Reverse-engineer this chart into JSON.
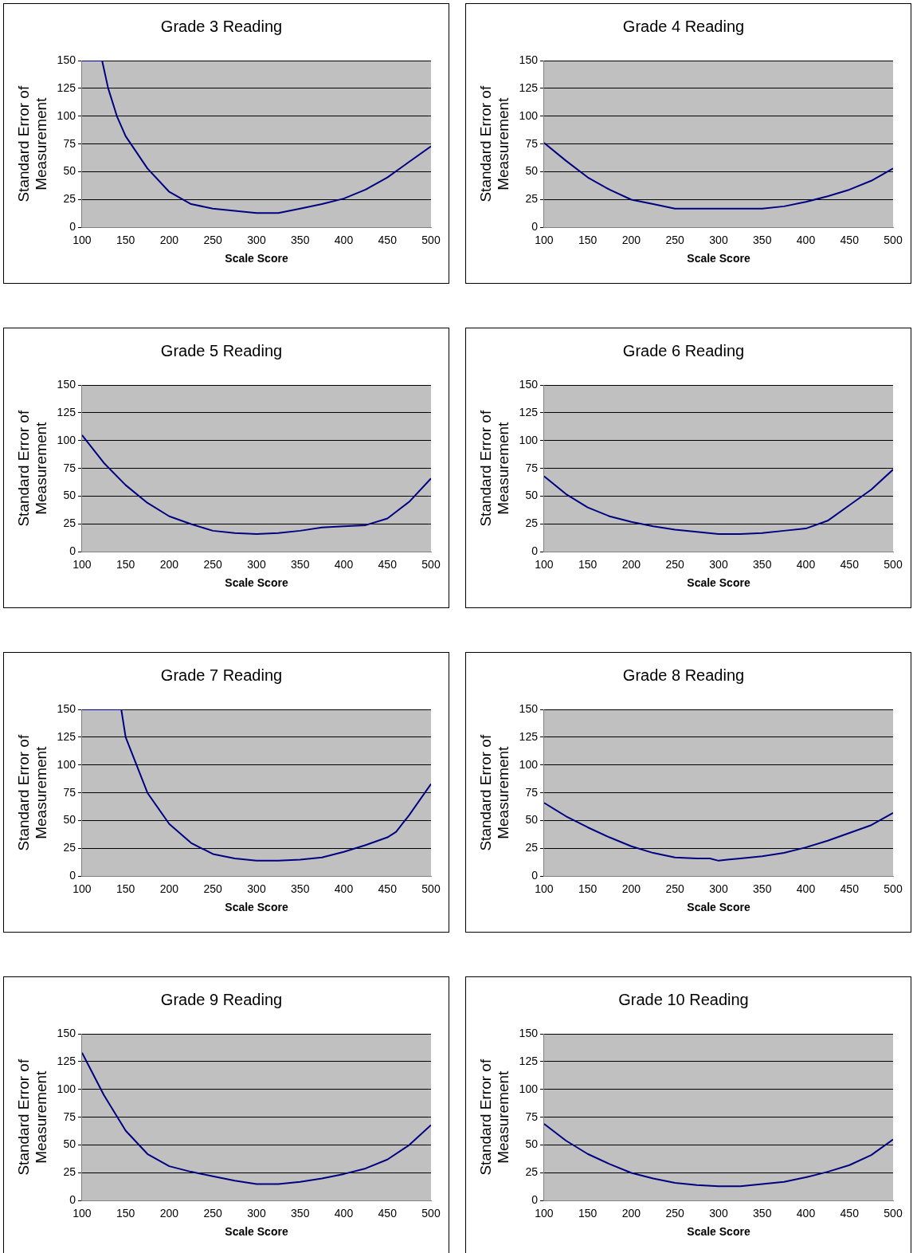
{
  "chart_data": [
    {
      "type": "line",
      "title": "Grade 3 Reading",
      "xlabel": "Scale Score",
      "ylabel": "Standard Error of Measurement",
      "xlim": [
        100,
        500
      ],
      "ylim": [
        0,
        150
      ],
      "xticks": [
        100,
        150,
        200,
        250,
        300,
        350,
        400,
        450,
        500
      ],
      "yticks": [
        0,
        25,
        50,
        75,
        100,
        125,
        150
      ],
      "grid": "y",
      "legend": false,
      "series": [
        {
          "color": "#000080",
          "x": [
            100,
            123,
            130,
            140,
            150,
            175,
            200,
            225,
            250,
            275,
            300,
            325,
            350,
            375,
            400,
            425,
            450,
            475,
            500
          ],
          "values": [
            150,
            150,
            125,
            100,
            82,
            53,
            32,
            21,
            17,
            15,
            13,
            13,
            17,
            21,
            26,
            34,
            45,
            59,
            73
          ]
        }
      ]
    },
    {
      "type": "line",
      "title": "Grade 4 Reading",
      "xlabel": "Scale Score",
      "ylabel": "Standard Error of Measurement",
      "xlim": [
        100,
        500
      ],
      "ylim": [
        0,
        150
      ],
      "xticks": [
        100,
        150,
        200,
        250,
        300,
        350,
        400,
        450,
        500
      ],
      "yticks": [
        0,
        25,
        50,
        75,
        100,
        125,
        150
      ],
      "grid": "y",
      "legend": false,
      "series": [
        {
          "color": "#000080",
          "x": [
            100,
            125,
            150,
            175,
            200,
            225,
            250,
            300,
            350,
            375,
            400,
            425,
            450,
            475,
            500
          ],
          "values": [
            76,
            60,
            45,
            34,
            25,
            21,
            17,
            17,
            17,
            19,
            23,
            28,
            34,
            42,
            53
          ]
        }
      ]
    },
    {
      "type": "line",
      "title": "Grade 5 Reading",
      "xlabel": "Scale Score",
      "ylabel": "Standard Error of Measurement",
      "xlim": [
        100,
        500
      ],
      "ylim": [
        0,
        150
      ],
      "xticks": [
        100,
        150,
        200,
        250,
        300,
        350,
        400,
        450,
        500
      ],
      "yticks": [
        0,
        25,
        50,
        75,
        100,
        125,
        150
      ],
      "grid": "y",
      "legend": false,
      "series": [
        {
          "color": "#000080",
          "x": [
            100,
            125,
            150,
            175,
            200,
            225,
            250,
            275,
            300,
            325,
            350,
            375,
            400,
            425,
            450,
            475,
            500
          ],
          "values": [
            105,
            80,
            60,
            44,
            32,
            25,
            19,
            17,
            16,
            17,
            19,
            22,
            23,
            24,
            30,
            45,
            66
          ]
        }
      ]
    },
    {
      "type": "line",
      "title": "Grade 6 Reading",
      "xlabel": "Scale Score",
      "ylabel": "Standard Error of Measurement",
      "xlim": [
        100,
        500
      ],
      "ylim": [
        0,
        150
      ],
      "xticks": [
        100,
        150,
        200,
        250,
        300,
        350,
        400,
        450,
        500
      ],
      "yticks": [
        0,
        25,
        50,
        75,
        100,
        125,
        150
      ],
      "grid": "y",
      "legend": false,
      "series": [
        {
          "color": "#000080",
          "x": [
            100,
            125,
            150,
            175,
            200,
            225,
            250,
            275,
            300,
            325,
            350,
            375,
            400,
            425,
            450,
            475,
            500
          ],
          "values": [
            68,
            52,
            40,
            32,
            27,
            23,
            20,
            18,
            16,
            16,
            17,
            19,
            21,
            28,
            42,
            56,
            74
          ]
        }
      ]
    },
    {
      "type": "line",
      "title": "Grade 7 Reading",
      "xlabel": "Scale Score",
      "ylabel": "Standard Error of Measurement",
      "xlim": [
        100,
        500
      ],
      "ylim": [
        0,
        150
      ],
      "xticks": [
        100,
        150,
        200,
        250,
        300,
        350,
        400,
        450,
        500
      ],
      "yticks": [
        0,
        25,
        50,
        75,
        100,
        125,
        150
      ],
      "grid": "y",
      "legend": false,
      "series": [
        {
          "color": "#000080",
          "x": [
            100,
            145,
            150,
            175,
            200,
            225,
            250,
            275,
            300,
            325,
            350,
            375,
            400,
            425,
            450,
            460,
            475,
            500
          ],
          "values": [
            150,
            150,
            125,
            75,
            47,
            30,
            20,
            16,
            14,
            14,
            15,
            17,
            22,
            28,
            35,
            40,
            55,
            83
          ]
        }
      ]
    },
    {
      "type": "line",
      "title": "Grade 8 Reading",
      "xlabel": "Scale Score",
      "ylabel": "Standard Error of Measurement",
      "xlim": [
        100,
        500
      ],
      "ylim": [
        0,
        150
      ],
      "xticks": [
        100,
        150,
        200,
        250,
        300,
        350,
        400,
        450,
        500
      ],
      "yticks": [
        0,
        25,
        50,
        75,
        100,
        125,
        150
      ],
      "grid": "y",
      "legend": false,
      "series": [
        {
          "color": "#000080",
          "x": [
            100,
            125,
            150,
            175,
            200,
            225,
            250,
            275,
            290,
            300,
            310,
            325,
            350,
            375,
            400,
            425,
            450,
            475,
            500
          ],
          "values": [
            66,
            54,
            44,
            35,
            27,
            21,
            17,
            16,
            16,
            14,
            15,
            16,
            18,
            21,
            26,
            32,
            39,
            46,
            57
          ]
        }
      ]
    },
    {
      "type": "line",
      "title": "Grade 9 Reading",
      "xlabel": "Scale Score",
      "ylabel": "Standard Error of Measurement",
      "xlim": [
        100,
        500
      ],
      "ylim": [
        0,
        150
      ],
      "xticks": [
        100,
        150,
        200,
        250,
        300,
        350,
        400,
        450,
        500
      ],
      "yticks": [
        0,
        25,
        50,
        75,
        100,
        125,
        150
      ],
      "grid": "y",
      "legend": false,
      "series": [
        {
          "color": "#000080",
          "x": [
            100,
            125,
            150,
            175,
            200,
            225,
            250,
            275,
            300,
            325,
            350,
            375,
            400,
            425,
            450,
            475,
            500
          ],
          "values": [
            133,
            95,
            63,
            42,
            31,
            26,
            22,
            18,
            15,
            15,
            17,
            20,
            24,
            29,
            37,
            50,
            68
          ]
        }
      ]
    },
    {
      "type": "line",
      "title": "Grade 10 Reading",
      "xlabel": "Scale Score",
      "ylabel": "Standard Error of Measurement",
      "xlim": [
        100,
        500
      ],
      "ylim": [
        0,
        150
      ],
      "xticks": [
        100,
        150,
        200,
        250,
        300,
        350,
        400,
        450,
        500
      ],
      "yticks": [
        0,
        25,
        50,
        75,
        100,
        125,
        150
      ],
      "grid": "y",
      "legend": false,
      "series": [
        {
          "color": "#000080",
          "x": [
            100,
            125,
            150,
            175,
            200,
            225,
            250,
            275,
            300,
            325,
            350,
            375,
            400,
            425,
            450,
            475,
            500
          ],
          "values": [
            69,
            54,
            42,
            33,
            25,
            20,
            16,
            14,
            13,
            13,
            15,
            17,
            21,
            26,
            32,
            41,
            55
          ]
        }
      ]
    }
  ]
}
